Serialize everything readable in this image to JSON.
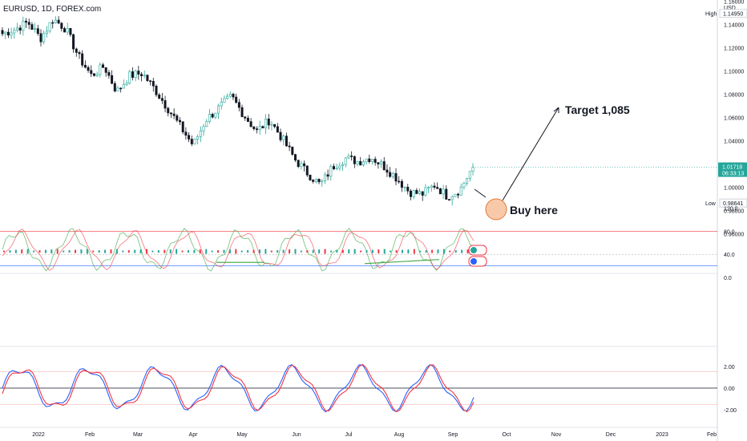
{
  "header": {
    "ticker": "EURUSD, 1D, FOREX.com"
  },
  "colors": {
    "up": "#26a69a",
    "down": "#131722",
    "accent_green": "#4caf50",
    "rsi_red": "#f23645",
    "rsi_green": "#4caf50",
    "macd_blue": "#2962ff",
    "macd_red": "#f23645",
    "circle_fill": "#f8c9a8",
    "circle_stroke": "#e07b39"
  },
  "price_axis": {
    "unit_label": "USD",
    "ticks": [
      "1.16000",
      "1.14000",
      "1.12000",
      "1.10000",
      "1.08000",
      "1.06000",
      "1.04000",
      "1.02000",
      "1.00000",
      "0.98000",
      "0.96000"
    ],
    "high_label": "High",
    "high_value": "1.14950",
    "low_label": "Low",
    "low_value": "0.98641",
    "last_price": "1.01718",
    "countdown": "06:33:13"
  },
  "rsi_axis": {
    "ticks": [
      "120.0",
      "80.0",
      "40.0",
      "0.0"
    ]
  },
  "macd_axis": {
    "ticks": [
      "2.00",
      "0.00",
      "-2.00"
    ]
  },
  "time_axis": {
    "ticks": [
      "2022",
      "Feb",
      "Mar",
      "Apr",
      "May",
      "Jun",
      "Jul",
      "Aug",
      "Sep",
      "Oct",
      "Nov",
      "Dec",
      "2023",
      "Feb"
    ]
  },
  "annotations": {
    "target": "Target 1,085",
    "buy": "Buy here"
  },
  "chart_data": {
    "type": "candlestick",
    "title": "EURUSD, 1D, FOREX.com",
    "ylabel": "USD",
    "ylim": [
      0.95,
      1.17
    ],
    "x": [
      "2022",
      "Feb",
      "Mar",
      "Apr",
      "May",
      "Jun",
      "Jul",
      "Aug",
      "Sep"
    ],
    "close_path": [
      1.132,
      1.136,
      1.142,
      1.128,
      1.145,
      1.136,
      1.112,
      1.096,
      1.104,
      1.082,
      1.096,
      1.098,
      1.084,
      1.068,
      1.052,
      1.036,
      1.058,
      1.068,
      1.078,
      1.062,
      1.048,
      1.058,
      1.042,
      1.024,
      1.012,
      1.002,
      1.018,
      1.025,
      1.022,
      1.026,
      1.018,
      1.008,
      0.996,
      0.994,
      1.002,
      0.992,
      0.998,
      1.018
    ],
    "high": 1.1495,
    "low": 0.98641,
    "last": 1.01718,
    "target": 1.085,
    "indicators": [
      {
        "name": "oscillator",
        "levels": [
          80,
          40,
          20
        ],
        "ylim": [
          0,
          120
        ]
      },
      {
        "name": "momentum",
        "levels": [
          1.5,
          0,
          -1.5
        ],
        "ylim": [
          -3,
          3
        ]
      }
    ]
  }
}
